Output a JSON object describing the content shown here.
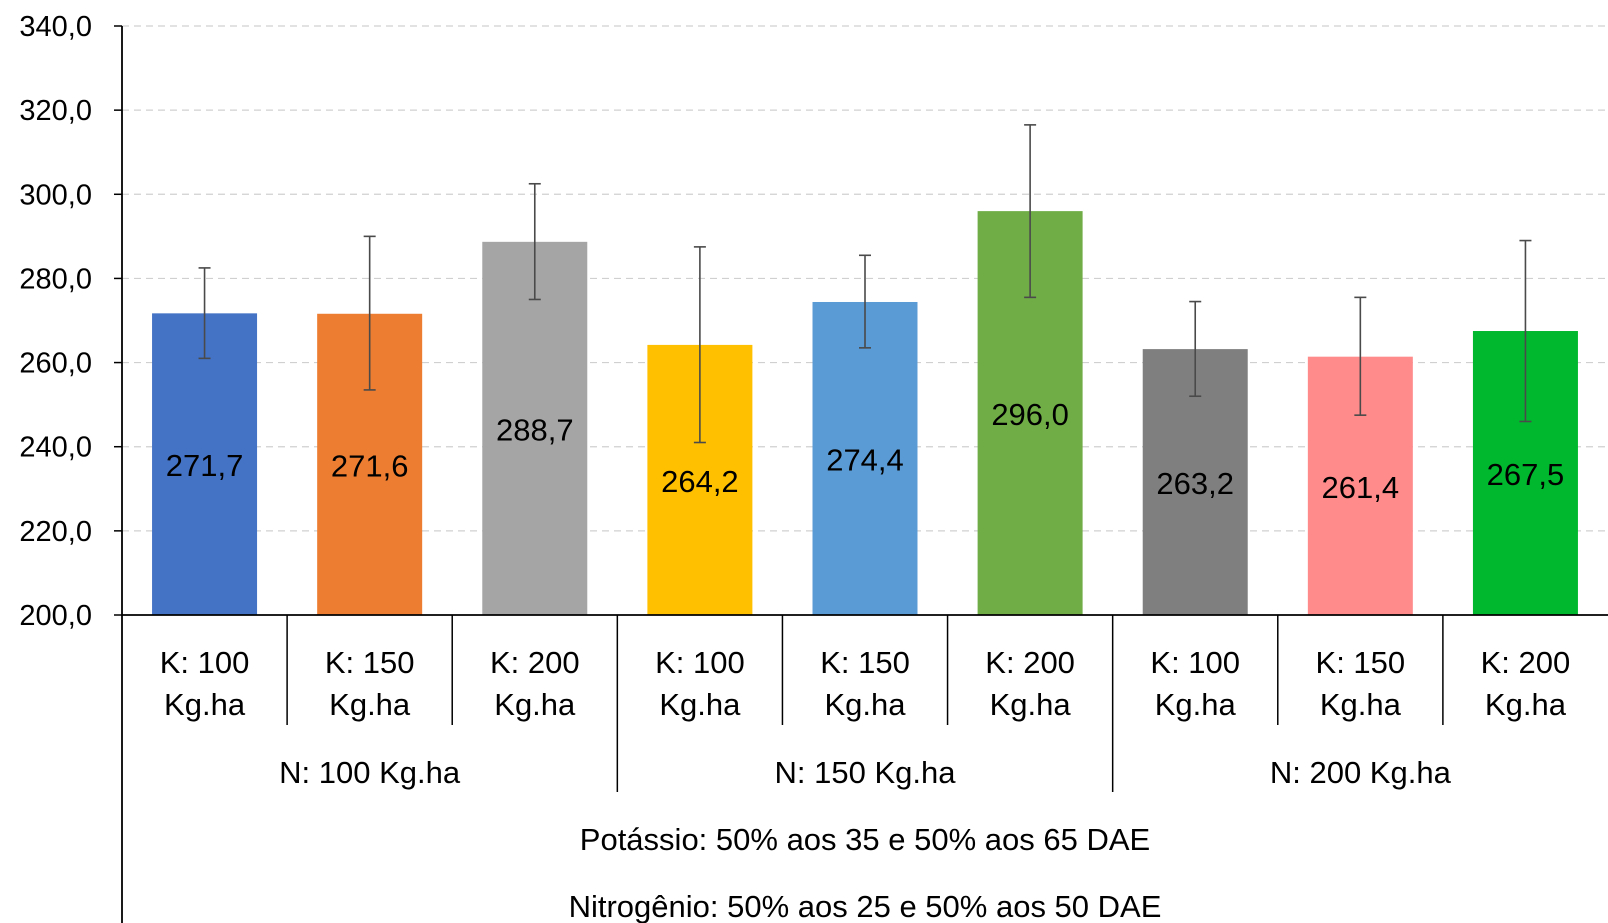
{
  "chart_data": {
    "type": "bar",
    "y_tick_labels": [
      "200,0",
      "220,0",
      "240,0",
      "260,0",
      "280,0",
      "300,0",
      "320,0",
      "340,0"
    ],
    "ylim": [
      200,
      340
    ],
    "grid": true,
    "categories": [
      {
        "line1": "K: 100",
        "line2": "Kg.ha",
        "value": 271.7,
        "value_label": "271,7",
        "error": [
          261.0,
          282.5
        ],
        "color": "#4472C4"
      },
      {
        "line1": "K: 150",
        "line2": "Kg.ha",
        "value": 271.6,
        "value_label": "271,6",
        "error": [
          253.5,
          290.0
        ],
        "color": "#ED7D31"
      },
      {
        "line1": "K: 200",
        "line2": "Kg.ha",
        "value": 288.7,
        "value_label": "288,7",
        "error": [
          275.0,
          302.5
        ],
        "color": "#A5A5A5"
      },
      {
        "line1": "K: 100",
        "line2": "Kg.ha",
        "value": 264.2,
        "value_label": "264,2",
        "error": [
          241.0,
          287.5
        ],
        "color": "#FFC000"
      },
      {
        "line1": "K: 150",
        "line2": "Kg.ha",
        "value": 274.4,
        "value_label": "274,4",
        "error": [
          263.5,
          285.5
        ],
        "color": "#5B9BD5"
      },
      {
        "line1": "K: 200",
        "line2": "Kg.ha",
        "value": 296.0,
        "value_label": "296,0",
        "error": [
          275.5,
          316.5
        ],
        "color": "#70AD47"
      },
      {
        "line1": "K: 100",
        "line2": "Kg.ha",
        "value": 263.2,
        "value_label": "263,2",
        "error": [
          252.0,
          274.5
        ],
        "color": "#7F7F7F"
      },
      {
        "line1": "K: 150",
        "line2": "Kg.ha",
        "value": 261.4,
        "value_label": "261,4",
        "error": [
          247.5,
          275.5
        ],
        "color": "#FF8B8B"
      },
      {
        "line1": "K: 200",
        "line2": "Kg.ha",
        "value": 267.5,
        "value_label": "267,5",
        "error": [
          246.0,
          289.0
        ],
        "color": "#00B82E"
      }
    ],
    "groups": [
      "N: 100 Kg.ha",
      "N: 150 Kg.ha",
      "N: 200 Kg.ha"
    ],
    "footer_lines": [
      "Potássio: 50% aos 35 e 50% aos 65 DAE",
      "Nitrogênio: 50% aos 25 e 50% aos 50 DAE"
    ]
  }
}
